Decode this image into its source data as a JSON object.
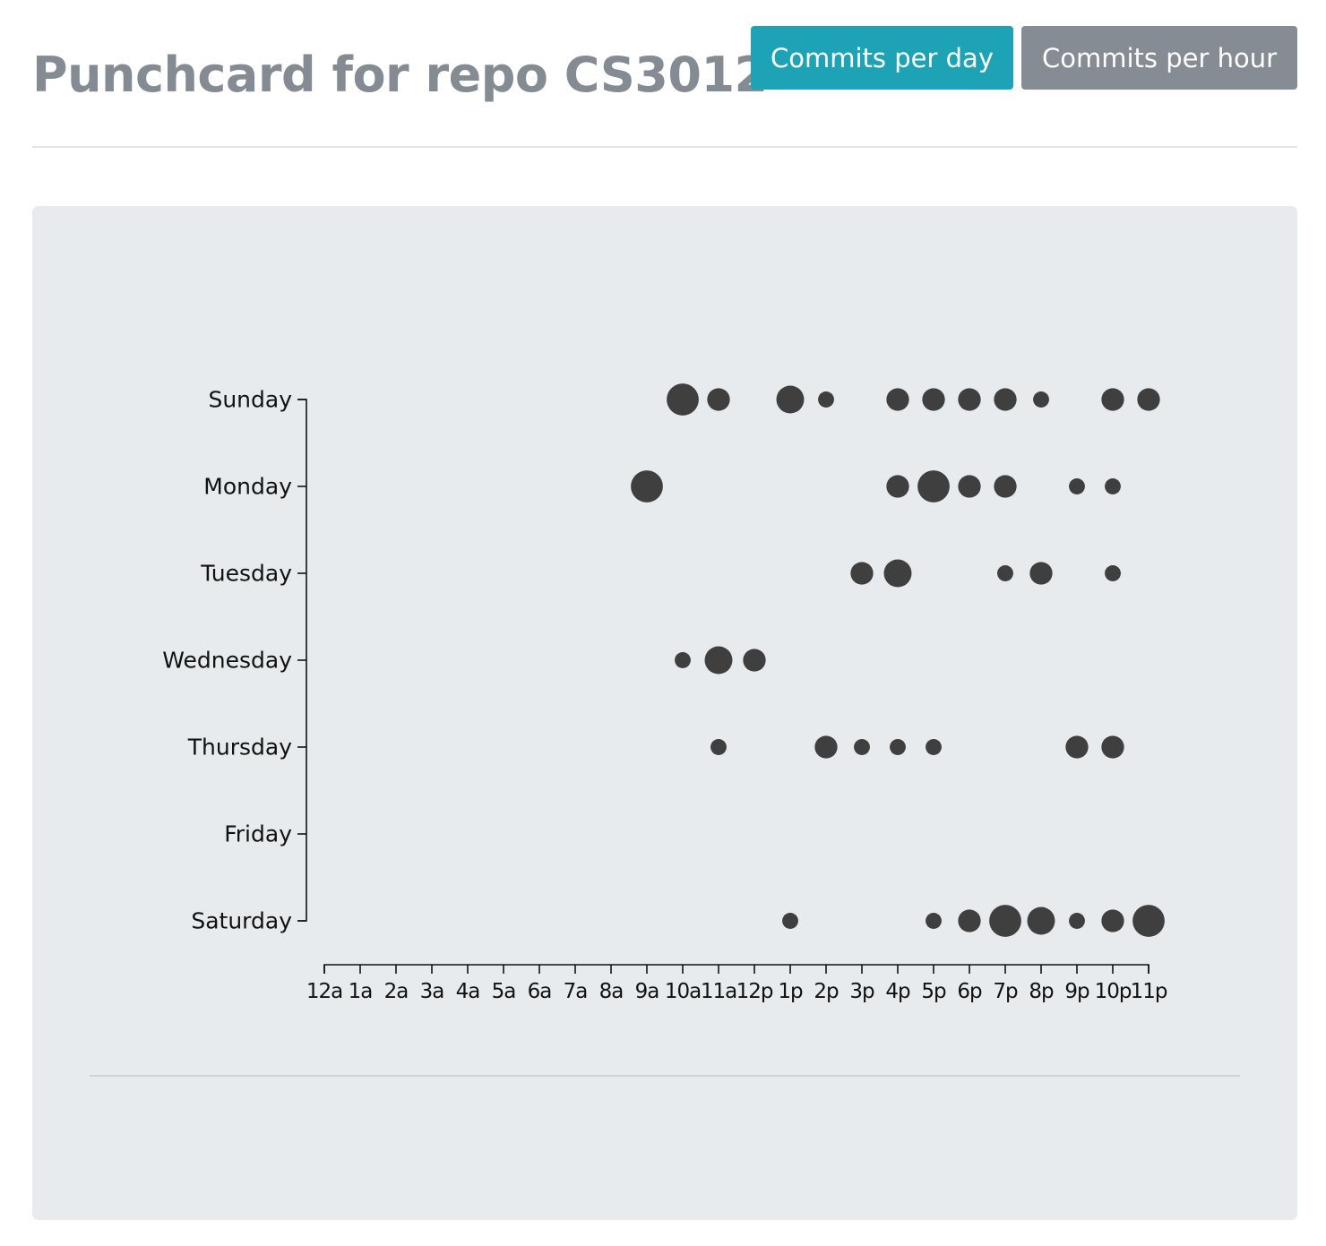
{
  "header": {
    "title": "Punchcard for repo CS3012",
    "buttons": {
      "commits_per_day": "Commits per day",
      "commits_per_hour": "Commits per hour"
    }
  },
  "colors": {
    "active_button": "#1ea2b5",
    "inactive_button": "#868c93",
    "dot": "#3f3f3f",
    "panel_background": "#e8ebee",
    "title": "#858b93"
  },
  "chart_data": {
    "type": "scatter",
    "title": "",
    "xlabel": "",
    "ylabel": "",
    "x_categories": [
      "12a",
      "1a",
      "2a",
      "3a",
      "4a",
      "5a",
      "6a",
      "7a",
      "8a",
      "9a",
      "10a",
      "11a",
      "12p",
      "1p",
      "2p",
      "3p",
      "4p",
      "5p",
      "6p",
      "7p",
      "8p",
      "9p",
      "10p",
      "11p"
    ],
    "y_categories": [
      "Sunday",
      "Monday",
      "Tuesday",
      "Wednesday",
      "Thursday",
      "Friday",
      "Saturday"
    ],
    "size_max": 5,
    "legend": "none",
    "grid": false,
    "points": [
      {
        "day": "Sunday",
        "hour": "10a",
        "size": 4
      },
      {
        "day": "Sunday",
        "hour": "11a",
        "size": 2
      },
      {
        "day": "Sunday",
        "hour": "1p",
        "size": 3
      },
      {
        "day": "Sunday",
        "hour": "2p",
        "size": 1
      },
      {
        "day": "Sunday",
        "hour": "4p",
        "size": 2
      },
      {
        "day": "Sunday",
        "hour": "5p",
        "size": 2
      },
      {
        "day": "Sunday",
        "hour": "6p",
        "size": 2
      },
      {
        "day": "Sunday",
        "hour": "7p",
        "size": 2
      },
      {
        "day": "Sunday",
        "hour": "8p",
        "size": 1
      },
      {
        "day": "Sunday",
        "hour": "10p",
        "size": 2
      },
      {
        "day": "Sunday",
        "hour": "11p",
        "size": 2
      },
      {
        "day": "Monday",
        "hour": "9a",
        "size": 4
      },
      {
        "day": "Monday",
        "hour": "4p",
        "size": 2
      },
      {
        "day": "Monday",
        "hour": "5p",
        "size": 4
      },
      {
        "day": "Monday",
        "hour": "6p",
        "size": 2
      },
      {
        "day": "Monday",
        "hour": "7p",
        "size": 2
      },
      {
        "day": "Monday",
        "hour": "9p",
        "size": 1
      },
      {
        "day": "Monday",
        "hour": "10p",
        "size": 1
      },
      {
        "day": "Tuesday",
        "hour": "3p",
        "size": 2
      },
      {
        "day": "Tuesday",
        "hour": "4p",
        "size": 3
      },
      {
        "day": "Tuesday",
        "hour": "7p",
        "size": 1
      },
      {
        "day": "Tuesday",
        "hour": "8p",
        "size": 2
      },
      {
        "day": "Tuesday",
        "hour": "10p",
        "size": 1
      },
      {
        "day": "Wednesday",
        "hour": "10a",
        "size": 1
      },
      {
        "day": "Wednesday",
        "hour": "11a",
        "size": 3
      },
      {
        "day": "Wednesday",
        "hour": "12p",
        "size": 2
      },
      {
        "day": "Thursday",
        "hour": "11a",
        "size": 1
      },
      {
        "day": "Thursday",
        "hour": "2p",
        "size": 2
      },
      {
        "day": "Thursday",
        "hour": "3p",
        "size": 1
      },
      {
        "day": "Thursday",
        "hour": "4p",
        "size": 1
      },
      {
        "day": "Thursday",
        "hour": "5p",
        "size": 1
      },
      {
        "day": "Thursday",
        "hour": "9p",
        "size": 2
      },
      {
        "day": "Thursday",
        "hour": "10p",
        "size": 2
      },
      {
        "day": "Saturday",
        "hour": "1p",
        "size": 1
      },
      {
        "day": "Saturday",
        "hour": "5p",
        "size": 1
      },
      {
        "day": "Saturday",
        "hour": "6p",
        "size": 2
      },
      {
        "day": "Saturday",
        "hour": "7p",
        "size": 4
      },
      {
        "day": "Saturday",
        "hour": "8p",
        "size": 3
      },
      {
        "day": "Saturday",
        "hour": "9p",
        "size": 1
      },
      {
        "day": "Saturday",
        "hour": "10p",
        "size": 2
      },
      {
        "day": "Saturday",
        "hour": "11p",
        "size": 4
      }
    ]
  }
}
